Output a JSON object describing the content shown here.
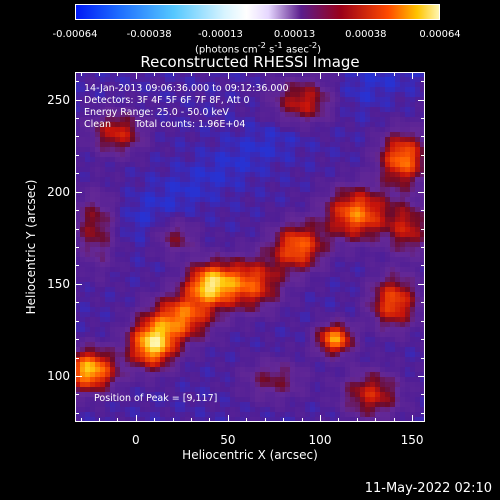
{
  "colorbar": {
    "tick_labels": [
      "-0.00064",
      "-0.00038",
      "-0.00013",
      "0.00013",
      "0.00038",
      "0.00064"
    ],
    "tick_values": [
      -0.00064,
      -0.00038,
      -0.00013,
      0.00013,
      0.00038,
      0.00064
    ],
    "units_html": "(photons cm<sup>-2</sup> s<sup>-1</sup> asec<sup>-2</sup>)",
    "colors": [
      "#0019f5",
      "#55c8ff",
      "#ffffff",
      "#5a1c8c",
      "#9a0018",
      "#ff4a00",
      "#ffc400",
      "#fff6b0"
    ]
  },
  "plot": {
    "title": "Reconstructed RHESSI Image",
    "xlabel": "Heliocentric X (arcsec)",
    "ylabel": "Heliocentric Y (arcsec)",
    "xlim": [
      -33,
      157
    ],
    "ylim": [
      75,
      265
    ],
    "xticks": [
      0,
      50,
      100,
      150
    ],
    "yticks": [
      100,
      150,
      200,
      250
    ]
  },
  "annotations": {
    "time_range": "14-Jan-2013 09:06:36.000 to 09:12:36.000",
    "detectors": "Detectors: 3F 4F 5F 6F 7F 8F, Att 0",
    "energy": "Energy Range: 25.0 - 50.0 keV",
    "method": "Clean",
    "counts": "Total counts: 1.96E+04",
    "peak": "Position of Peak = [9,117]"
  },
  "footer": {
    "timestamp": "11-May-2022 02:10"
  },
  "chart_data": {
    "type": "heatmap",
    "title": "Reconstructed RHESSI Image",
    "xlabel": "Heliocentric X (arcsec)",
    "ylabel": "Heliocentric Y (arcsec)",
    "xlim": [
      -33,
      157
    ],
    "ylim": [
      75,
      265
    ],
    "color_range": [
      -0.00064,
      0.00064
    ],
    "peak_position": [
      9,
      117
    ],
    "sources": [
      {
        "x": 9,
        "y": 117,
        "amp": 1.0,
        "sx": 9,
        "sy": 9
      },
      {
        "x": -25,
        "y": 103,
        "amp": 0.95,
        "sx": 10,
        "sy": 8
      },
      {
        "x": 40,
        "y": 150,
        "amp": 0.9,
        "sx": 9,
        "sy": 8
      },
      {
        "x": 25,
        "y": 132,
        "amp": 0.75,
        "sx": 12,
        "sy": 9
      },
      {
        "x": 62,
        "y": 150,
        "amp": 0.7,
        "sx": 12,
        "sy": 10
      },
      {
        "x": 88,
        "y": 170,
        "amp": 0.75,
        "sx": 10,
        "sy": 9
      },
      {
        "x": 120,
        "y": 188,
        "amp": 0.8,
        "sx": 12,
        "sy": 10
      },
      {
        "x": 145,
        "y": 218,
        "amp": 0.8,
        "sx": 9,
        "sy": 10
      },
      {
        "x": 108,
        "y": 120,
        "amp": 0.85,
        "sx": 7,
        "sy": 6
      },
      {
        "x": 140,
        "y": 140,
        "amp": 0.7,
        "sx": 9,
        "sy": 10
      },
      {
        "x": 148,
        "y": 180,
        "amp": 0.5,
        "sx": 8,
        "sy": 10
      },
      {
        "x": 92,
        "y": 248,
        "amp": 0.6,
        "sx": 12,
        "sy": 9
      },
      {
        "x": -10,
        "y": 232,
        "amp": 0.55,
        "sx": 10,
        "sy": 8
      },
      {
        "x": -22,
        "y": 178,
        "amp": 0.5,
        "sx": 9,
        "sy": 14
      },
      {
        "x": 22,
        "y": 175,
        "amp": 0.35,
        "sx": 8,
        "sy": 7
      },
      {
        "x": 75,
        "y": 98,
        "amp": 0.35,
        "sx": 12,
        "sy": 8
      },
      {
        "x": 128,
        "y": 90,
        "amp": 0.55,
        "sx": 11,
        "sy": 9
      }
    ]
  }
}
